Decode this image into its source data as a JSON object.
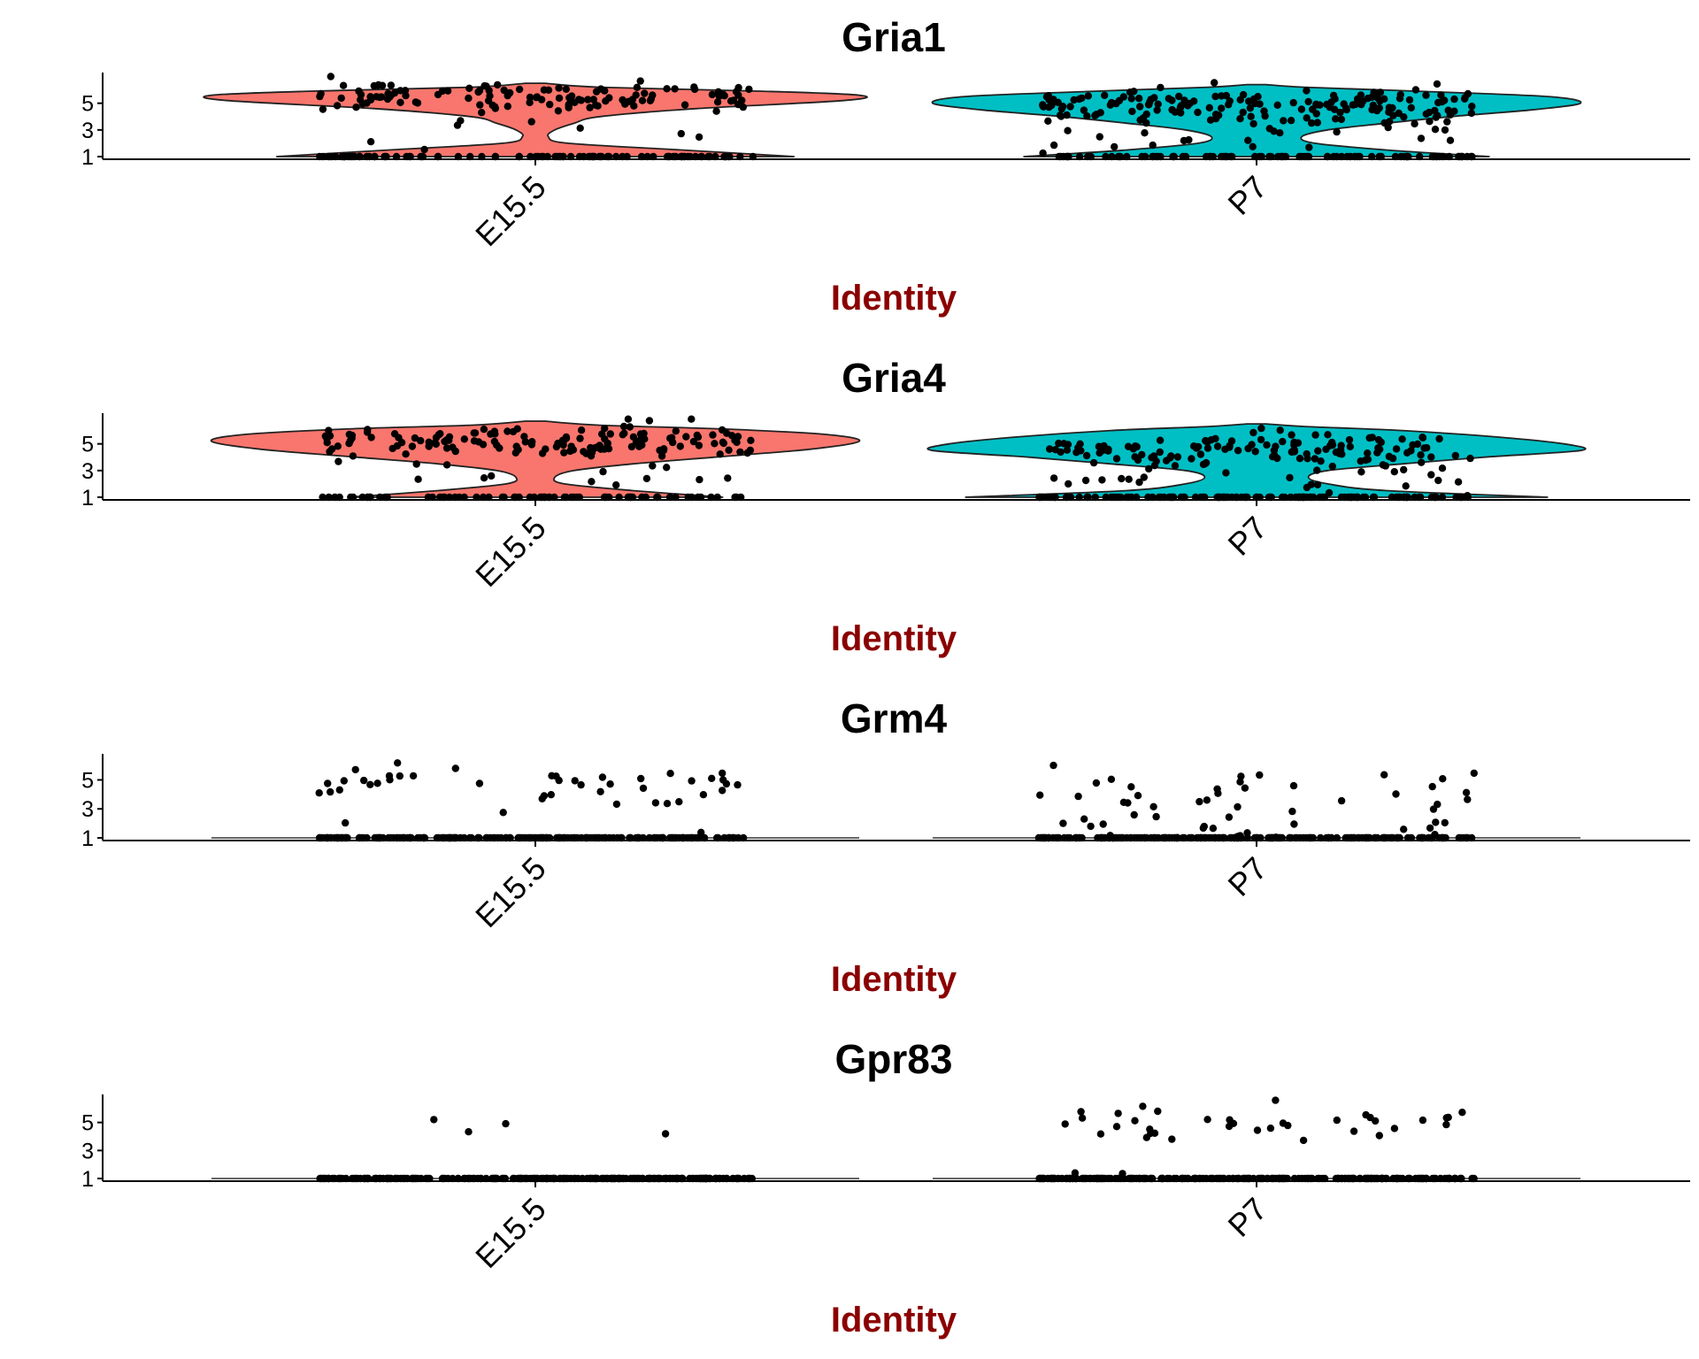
{
  "chart_data": [
    {
      "type": "violin",
      "title": "Gria1",
      "xlabel": "Identity",
      "ylabel": "",
      "categories": [
        "E15.5",
        "P7"
      ],
      "y_ticks": [
        1,
        3,
        5
      ],
      "y_tick_labels": [
        "1",
        "3",
        "5"
      ],
      "ylim": [
        0.8,
        7.3
      ],
      "violins": [
        {
          "category": "E15.5",
          "color": "#F8766D",
          "density": [
            [
              1.0,
              0.8
            ],
            [
              1.5,
              0.45
            ],
            [
              2.0,
              0.1
            ],
            [
              2.5,
              0.04
            ],
            [
              3.0,
              0.06
            ],
            [
              3.5,
              0.12
            ],
            [
              4.0,
              0.2
            ],
            [
              4.6,
              0.5
            ],
            [
              5.2,
              0.95
            ],
            [
              5.6,
              1.0
            ],
            [
              5.9,
              0.7
            ],
            [
              6.2,
              0.2
            ],
            [
              6.5,
              0.03
            ]
          ]
        },
        {
          "category": "P7",
          "color": "#00BFC4",
          "density": [
            [
              1.0,
              0.72
            ],
            [
              1.5,
              0.4
            ],
            [
              2.0,
              0.18
            ],
            [
              2.5,
              0.14
            ],
            [
              3.0,
              0.22
            ],
            [
              3.5,
              0.4
            ],
            [
              4.0,
              0.6
            ],
            [
              4.5,
              0.85
            ],
            [
              5.0,
              1.0
            ],
            [
              5.5,
              0.9
            ],
            [
              5.9,
              0.5
            ],
            [
              6.2,
              0.15
            ],
            [
              6.4,
              0.03
            ]
          ]
        }
      ]
    },
    {
      "type": "violin",
      "title": "Gria4",
      "xlabel": "Identity",
      "ylabel": "",
      "categories": [
        "E15.5",
        "P7"
      ],
      "y_ticks": [
        1,
        3,
        5
      ],
      "y_tick_labels": [
        "1",
        "3",
        "5"
      ],
      "ylim": [
        0.8,
        7.3
      ],
      "violins": [
        {
          "category": "E15.5",
          "color": "#F8766D",
          "density": [
            [
              1.0,
              0.58
            ],
            [
              1.5,
              0.3
            ],
            [
              2.0,
              0.09
            ],
            [
              2.5,
              0.06
            ],
            [
              3.0,
              0.12
            ],
            [
              3.5,
              0.3
            ],
            [
              4.0,
              0.55
            ],
            [
              4.6,
              0.85
            ],
            [
              5.2,
              1.0
            ],
            [
              5.7,
              0.9
            ],
            [
              6.1,
              0.6
            ],
            [
              6.4,
              0.2
            ],
            [
              6.7,
              0.03
            ]
          ]
        },
        {
          "category": "P7",
          "color": "#00BFC4",
          "density": [
            [
              1.0,
              0.9
            ],
            [
              1.5,
              0.4
            ],
            [
              2.0,
              0.22
            ],
            [
              2.5,
              0.16
            ],
            [
              3.0,
              0.22
            ],
            [
              3.5,
              0.45
            ],
            [
              4.0,
              0.7
            ],
            [
              4.5,
              1.0
            ],
            [
              5.0,
              0.95
            ],
            [
              5.5,
              0.75
            ],
            [
              6.0,
              0.45
            ],
            [
              6.3,
              0.15
            ],
            [
              6.5,
              0.03
            ]
          ]
        }
      ]
    },
    {
      "type": "violin",
      "title": "Grm4",
      "xlabel": "Identity",
      "ylabel": "",
      "categories": [
        "E15.5",
        "P7"
      ],
      "y_ticks": [
        1,
        3,
        5
      ],
      "y_tick_labels": [
        "1",
        "3",
        "5"
      ],
      "ylim": [
        0.8,
        6.8
      ],
      "violins": [
        {
          "category": "E15.5",
          "color": "#F8766D",
          "collapsed": true
        },
        {
          "category": "P7",
          "color": "#00BFC4",
          "collapsed": true
        }
      ]
    },
    {
      "type": "violin",
      "title": "Gpr83",
      "xlabel": "Identity",
      "ylabel": "",
      "categories": [
        "E15.5",
        "P7"
      ],
      "y_ticks": [
        1,
        3,
        5
      ],
      "y_tick_labels": [
        "1",
        "3",
        "5"
      ],
      "ylim": [
        0.8,
        7.0
      ],
      "violins": [
        {
          "category": "E15.5",
          "color": "#F8766D",
          "collapsed": true
        },
        {
          "category": "P7",
          "color": "#00BFC4",
          "collapsed": true
        }
      ]
    }
  ],
  "points": [
    {
      "panel": 0,
      "category": 0,
      "jitter_width": 0.82,
      "count": 230,
      "seed": 11,
      "levels": [
        {
          "y": 1.0,
          "w": 0.4,
          "sd": 0.0
        },
        {
          "y": 5.5,
          "w": 0.55,
          "sd": 0.5
        },
        {
          "y": 3.0,
          "w": 0.05,
          "sd": 1.0
        }
      ]
    },
    {
      "panel": 0,
      "category": 1,
      "jitter_width": 0.82,
      "count": 280,
      "seed": 23,
      "levels": [
        {
          "y": 1.0,
          "w": 0.33,
          "sd": 0.0
        },
        {
          "y": 4.8,
          "w": 0.57,
          "sd": 0.6
        },
        {
          "y": 2.5,
          "w": 0.1,
          "sd": 1.0
        }
      ]
    },
    {
      "panel": 1,
      "category": 0,
      "jitter_width": 0.82,
      "count": 230,
      "seed": 37,
      "levels": [
        {
          "y": 1.0,
          "w": 0.28,
          "sd": 0.0
        },
        {
          "y": 5.2,
          "w": 0.64,
          "sd": 0.6
        },
        {
          "y": 3.0,
          "w": 0.08,
          "sd": 1.0
        }
      ]
    },
    {
      "panel": 1,
      "category": 1,
      "jitter_width": 0.82,
      "count": 280,
      "seed": 41,
      "levels": [
        {
          "y": 1.0,
          "w": 0.42,
          "sd": 0.0
        },
        {
          "y": 4.6,
          "w": 0.48,
          "sd": 0.6
        },
        {
          "y": 2.5,
          "w": 0.1,
          "sd": 1.0
        }
      ]
    },
    {
      "panel": 2,
      "category": 0,
      "jitter_width": 0.82,
      "count": 240,
      "seed": 53,
      "levels": [
        {
          "y": 1.0,
          "w": 0.83,
          "sd": 0.0
        },
        {
          "y": 4.8,
          "w": 0.15,
          "sd": 0.5
        },
        {
          "y": 3.0,
          "w": 0.02,
          "sd": 0.8
        }
      ]
    },
    {
      "panel": 2,
      "category": 1,
      "jitter_width": 0.82,
      "count": 260,
      "seed": 67,
      "levels": [
        {
          "y": 1.0,
          "w": 0.84,
          "sd": 0.0
        },
        {
          "y": 3.8,
          "w": 0.1,
          "sd": 0.8
        },
        {
          "y": 1.8,
          "w": 0.06,
          "sd": 0.6
        }
      ]
    },
    {
      "panel": 3,
      "category": 0,
      "jitter_width": 0.82,
      "count": 230,
      "seed": 71,
      "levels": [
        {
          "y": 1.0,
          "w": 0.96,
          "sd": 0.0
        },
        {
          "y": 4.5,
          "w": 0.04,
          "sd": 0.5
        }
      ]
    },
    {
      "panel": 3,
      "category": 1,
      "jitter_width": 0.82,
      "count": 260,
      "seed": 89,
      "levels": [
        {
          "y": 1.0,
          "w": 0.86,
          "sd": 0.0
        },
        {
          "y": 4.8,
          "w": 0.12,
          "sd": 0.6
        },
        {
          "y": 1.5,
          "w": 0.02,
          "sd": 0.4
        }
      ]
    }
  ]
}
